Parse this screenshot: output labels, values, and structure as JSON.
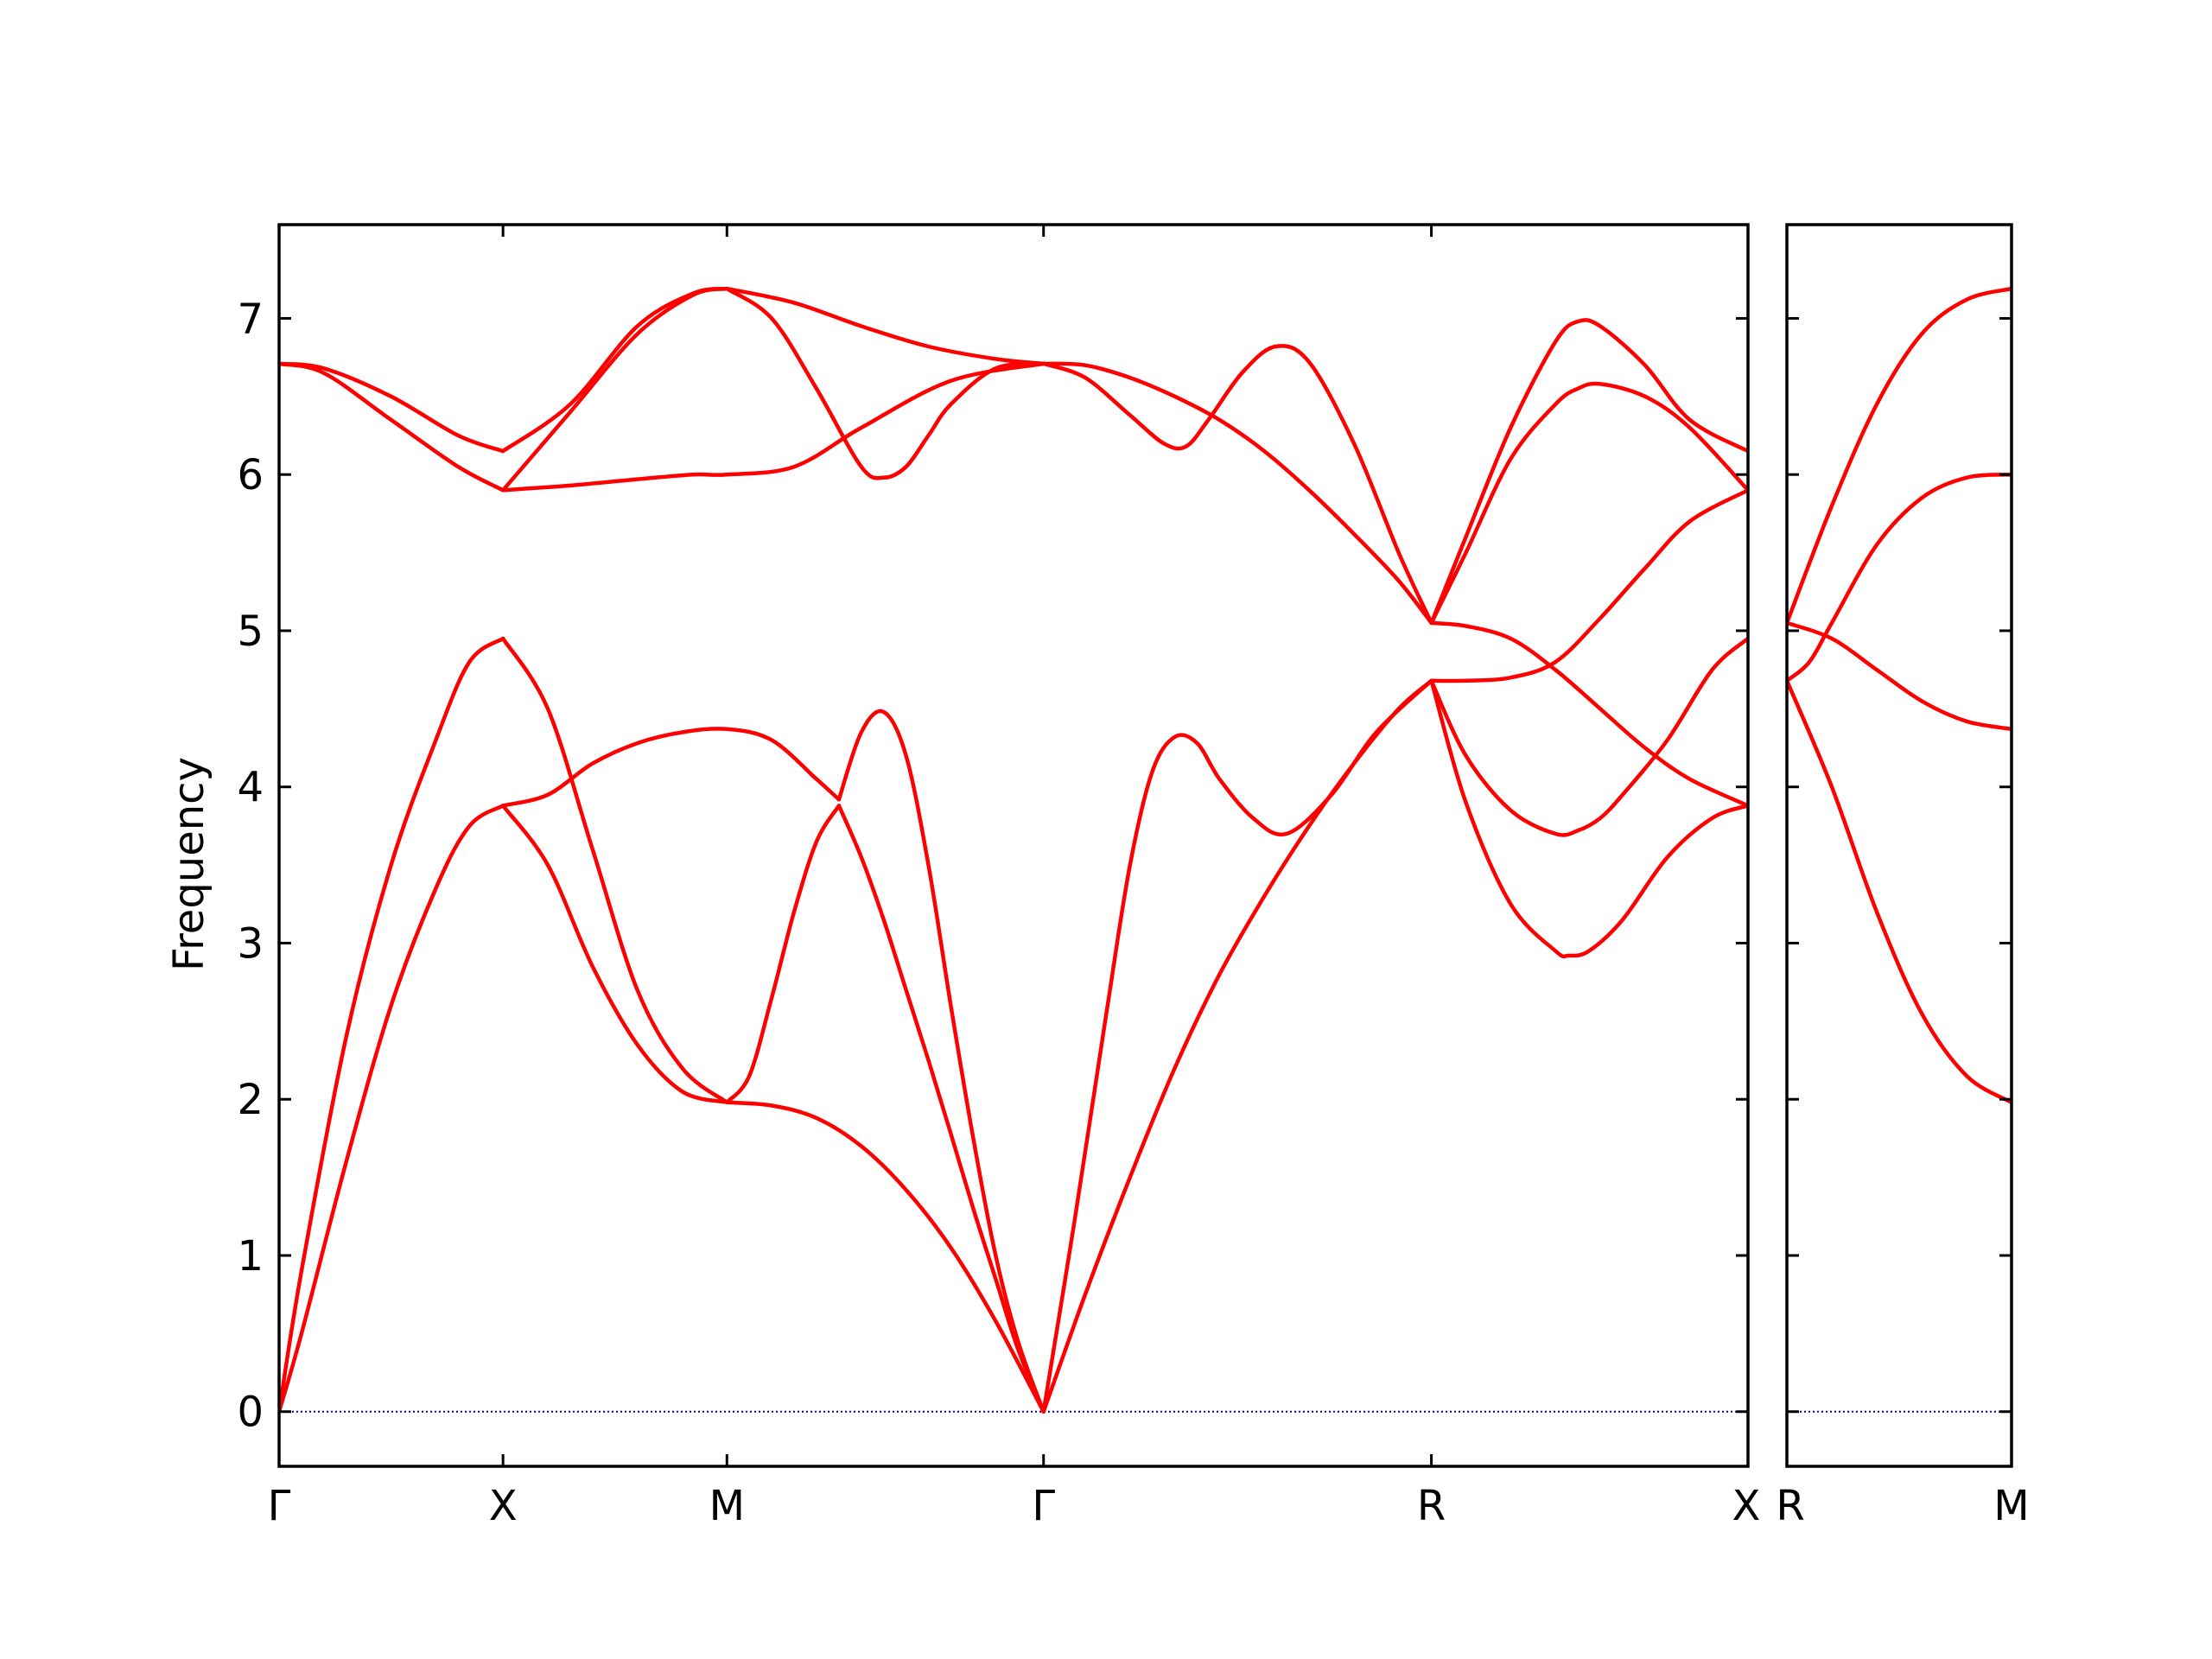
{
  "chart_data": {
    "type": "line",
    "ylabel": "Frequency",
    "ylim": [
      -0.35,
      7.6
    ],
    "yticks": [
      0,
      1,
      2,
      3,
      4,
      5,
      6,
      7
    ],
    "grid": false,
    "legend": "none",
    "colors": {
      "bands": "#ff0000",
      "zero_line": "#0000aa",
      "axes": "#000000"
    },
    "panels": [
      {
        "name": "left",
        "xticks": [
          {
            "label": "Γ",
            "x": 0
          },
          {
            "label": "X",
            "x": 1
          },
          {
            "label": "M",
            "x": 2
          },
          {
            "label": "Γ",
            "x": 3.414
          },
          {
            "label": "R",
            "x": 5.146
          },
          {
            "label": "X",
            "x": 6.56
          }
        ],
        "xlim": [
          0,
          6.56
        ],
        "series": [
          {
            "x": [
              0,
              0.1,
              0.3,
              0.5,
              0.7,
              0.85,
              1
            ],
            "values": [
              0,
              0.9,
              2.4,
              3.5,
              4.3,
              4.8,
              4.95
            ]
          },
          {
            "x": [
              1,
              1.2,
              1.4,
              1.6,
              1.8,
              2
            ],
            "values": [
              4.95,
              4.5,
              3.6,
              2.7,
              2.2,
              1.98
            ]
          },
          {
            "x": [
              0,
              0.1,
              0.3,
              0.5,
              0.7,
              0.85,
              1
            ],
            "values": [
              0,
              0.5,
              1.6,
              2.6,
              3.35,
              3.75,
              3.88
            ]
          },
          {
            "x": [
              1,
              1.2,
              1.4,
              1.6,
              1.8,
              2
            ],
            "values": [
              3.88,
              3.5,
              2.85,
              2.35,
              2.05,
              1.98
            ]
          },
          {
            "x": [
              1,
              1.2,
              1.4,
              1.6,
              1.8,
              2,
              2.2,
              2.4,
              2.5
            ],
            "values": [
              3.88,
              3.95,
              4.15,
              4.28,
              4.35,
              4.37,
              4.3,
              4.05,
              3.92
            ]
          },
          {
            "x": [
              2,
              2.1,
              2.2,
              2.3,
              2.4,
              2.5
            ],
            "values": [
              1.98,
              2.15,
              2.65,
              3.2,
              3.65,
              3.88
            ]
          },
          {
            "x": [
              2.5,
              2.6,
              2.7,
              2.8,
              2.9,
              3.0,
              3.1,
              3.2,
              3.3,
              3.414
            ],
            "values": [
              3.92,
              4.35,
              4.48,
              4.2,
              3.5,
              2.6,
              1.75,
              1.0,
              0.45,
              0
            ]
          },
          {
            "x": [
              2.5,
              2.6,
              2.7,
              2.8,
              2.9,
              3.0,
              3.1,
              3.2,
              3.3,
              3.414
            ],
            "values": [
              3.88,
              3.55,
              3.15,
              2.7,
              2.25,
              1.78,
              1.3,
              0.85,
              0.4,
              0
            ]
          },
          {
            "x": [
              2,
              2.2,
              2.4,
              2.6,
              2.8,
              3.0,
              3.2,
              3.414
            ],
            "values": [
              1.98,
              1.96,
              1.88,
              1.7,
              1.42,
              1.05,
              0.58,
              0
            ]
          },
          {
            "x": [
              3.414,
              3.55,
              3.7,
              3.8,
              3.9,
              4.0,
              4.1,
              4.2,
              4.35,
              4.5,
              4.7,
              4.9,
              5.146
            ],
            "values": [
              0,
              1.2,
              2.6,
              3.5,
              4.1,
              4.32,
              4.28,
              4.05,
              3.8,
              3.7,
              3.95,
              4.35,
              4.68
            ]
          },
          {
            "x": [
              3.414,
              3.6,
              3.8,
              4.0,
              4.2,
              4.4,
              4.6,
              4.8,
              5.0,
              5.146
            ],
            "values": [
              0,
              0.75,
              1.5,
              2.2,
              2.8,
              3.3,
              3.75,
              4.15,
              4.5,
              4.68
            ]
          },
          {
            "x": [
              5.146,
              5.3,
              5.5,
              5.7,
              5.8,
              5.9,
              6.0,
              6.2,
              6.4,
              6.56
            ],
            "values": [
              4.68,
              4.2,
              3.85,
              3.7,
              3.72,
              3.8,
              3.95,
              4.3,
              4.75,
              4.95
            ]
          },
          {
            "x": [
              5.146,
              5.3,
              5.5,
              5.7,
              5.76,
              5.85,
              6.0,
              6.2,
              6.4,
              6.56
            ],
            "values": [
              4.68,
              3.9,
              3.25,
              2.95,
              2.92,
              2.95,
              3.15,
              3.55,
              3.8,
              3.88
            ]
          },
          {
            "x": [
              5.146,
              5.3,
              5.5,
              5.7,
              5.9,
              6.1,
              6.3,
              6.56
            ],
            "values": [
              4.68,
              4.68,
              4.7,
              4.8,
              5.08,
              5.4,
              5.7,
              5.9
            ]
          },
          {
            "x": [
              5.146,
              5.3,
              5.5,
              5.7,
              5.9,
              6.1,
              6.3,
              6.56
            ],
            "values": [
              5.05,
              5.03,
              4.95,
              4.75,
              4.5,
              4.25,
              4.05,
              3.88
            ]
          },
          {
            "x": [
              0,
              0.2,
              0.5,
              0.8,
              1
            ],
            "values": [
              6.71,
              6.68,
              6.5,
              6.25,
              6.15
            ]
          },
          {
            "x": [
              0,
              0.2,
              0.5,
              0.8,
              1
            ],
            "values": [
              6.71,
              6.65,
              6.35,
              6.05,
              5.9
            ]
          },
          {
            "x": [
              1,
              1.3,
              1.6,
              1.85,
              2
            ],
            "values": [
              5.9,
              6.4,
              6.9,
              7.15,
              7.19
            ]
          },
          {
            "x": [
              1,
              1.3,
              1.6,
              1.85,
              2
            ],
            "values": [
              6.15,
              6.45,
              6.95,
              7.16,
              7.19
            ]
          },
          {
            "x": [
              1,
              1.3,
              1.6,
              1.85,
              2,
              2.3,
              2.6,
              3.0,
              3.414
            ],
            "values": [
              5.9,
              5.93,
              5.97,
              6.0,
              6.0,
              6.05,
              6.3,
              6.6,
              6.71
            ]
          },
          {
            "x": [
              2,
              2.2,
              2.4,
              2.6,
              2.7,
              2.8,
              2.9,
              3.0,
              3.2,
              3.414
            ],
            "values": [
              7.19,
              7.0,
              6.55,
              6.05,
              5.98,
              6.05,
              6.25,
              6.45,
              6.68,
              6.71
            ]
          },
          {
            "x": [
              2,
              2.3,
              2.6,
              2.9,
              3.2,
              3.414
            ],
            "values": [
              7.19,
              7.1,
              6.95,
              6.82,
              6.74,
              6.71
            ]
          },
          {
            "x": [
              3.414,
              3.6,
              3.8,
              3.95,
              4.05,
              4.15,
              4.3,
              4.45,
              4.6,
              4.8,
              5.0,
              5.146
            ],
            "values": [
              6.71,
              6.62,
              6.38,
              6.2,
              6.18,
              6.35,
              6.65,
              6.82,
              6.72,
              6.2,
              5.5,
              5.05
            ]
          },
          {
            "x": [
              3.414,
              3.6,
              3.8,
              4.0,
              4.2,
              4.4,
              4.6,
              4.8,
              5.0,
              5.146
            ],
            "values": [
              6.71,
              6.7,
              6.62,
              6.5,
              6.35,
              6.15,
              5.9,
              5.62,
              5.32,
              5.05
            ]
          },
          {
            "x": [
              5.146,
              5.3,
              5.5,
              5.7,
              5.8,
              5.9,
              6.1,
              6.3,
              6.56
            ],
            "values": [
              5.05,
              5.6,
              6.3,
              6.85,
              6.98,
              6.95,
              6.7,
              6.35,
              6.15
            ]
          },
          {
            "x": [
              5.146,
              5.3,
              5.5,
              5.7,
              5.8,
              5.9,
              6.1,
              6.3,
              6.56
            ],
            "values": [
              5.05,
              5.5,
              6.1,
              6.45,
              6.55,
              6.58,
              6.5,
              6.3,
              5.9
            ]
          }
        ]
      },
      {
        "name": "right",
        "xticks": [
          {
            "label": "R",
            "x": 0
          },
          {
            "label": "M",
            "x": 1
          }
        ],
        "xlim": [
          0,
          1
        ],
        "series": [
          {
            "x": [
              0,
              0.2,
              0.4,
              0.6,
              0.8,
              1
            ],
            "values": [
              5.05,
              5.8,
              6.45,
              6.9,
              7.12,
              7.19
            ]
          },
          {
            "x": [
              0,
              0.1,
              0.2,
              0.4,
              0.6,
              0.8,
              1
            ],
            "values": [
              4.68,
              4.8,
              5.05,
              5.55,
              5.85,
              5.98,
              6.0
            ]
          },
          {
            "x": [
              0,
              0.2,
              0.4,
              0.6,
              0.8,
              1
            ],
            "values": [
              5.05,
              4.95,
              4.75,
              4.55,
              4.42,
              4.37
            ]
          },
          {
            "x": [
              0,
              0.2,
              0.4,
              0.6,
              0.8,
              1
            ],
            "values": [
              4.68,
              4.0,
              3.2,
              2.55,
              2.15,
              1.98
            ]
          }
        ]
      }
    ]
  }
}
